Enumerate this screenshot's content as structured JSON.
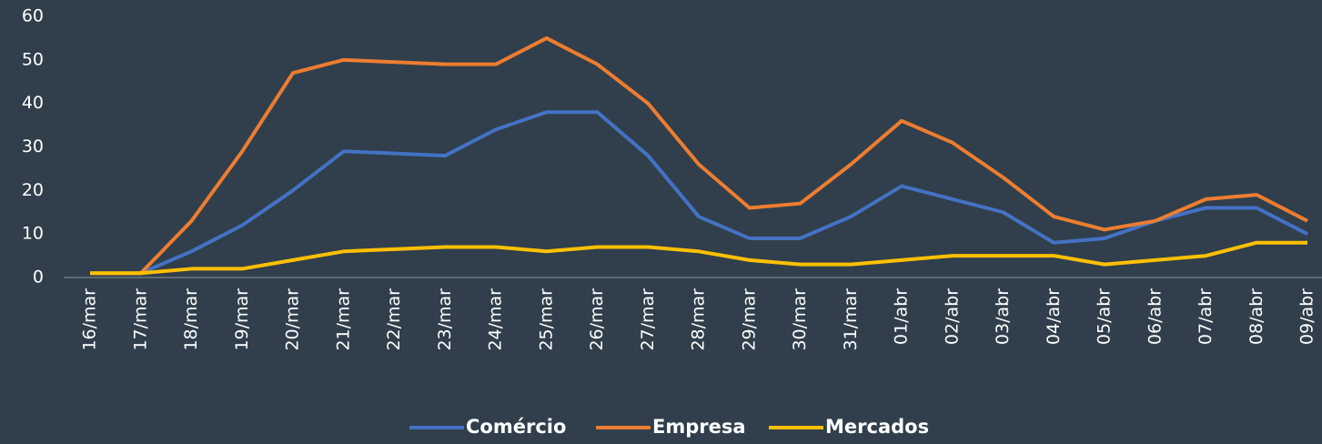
{
  "chart_data": {
    "type": "line",
    "categories": [
      "16/mar",
      "17/mar",
      "18/mar",
      "19/mar",
      "20/mar",
      "21/mar",
      "22/mar",
      "23/mar",
      "24/mar",
      "25/mar",
      "26/mar",
      "27/mar",
      "28/mar",
      "29/mar",
      "30/mar",
      "31/mar",
      "01/abr",
      "02/abr",
      "03/abr",
      "04/abr",
      "05/abr",
      "06/abr",
      "07/abr",
      "08/abr",
      "09/abr"
    ],
    "series": [
      {
        "name": "Comércio",
        "color": "#4472c4",
        "values": [
          1,
          1,
          6,
          12,
          20,
          29,
          28.5,
          28,
          34,
          38,
          38,
          28,
          14,
          9,
          9,
          14,
          21,
          18,
          15,
          8,
          9,
          13,
          16,
          16,
          10
        ]
      },
      {
        "name": "Empresa",
        "color": "#ed7d31",
        "values": [
          1,
          1,
          13,
          29,
          47,
          50,
          49.5,
          49,
          49,
          55,
          49,
          40,
          26,
          16,
          17,
          26,
          36,
          31,
          23,
          14,
          11,
          13,
          18,
          19,
          13
        ]
      },
      {
        "name": "Mercados",
        "color": "#ffc000",
        "values": [
          1,
          1,
          2,
          2,
          4,
          6,
          6.5,
          7,
          7,
          6,
          7,
          7,
          6,
          4,
          3,
          3,
          4,
          5,
          5,
          5,
          3,
          4,
          5,
          8,
          8
        ]
      }
    ],
    "ylim": [
      0,
      60
    ],
    "yticks": [
      0,
      10,
      20,
      30,
      40,
      50,
      60
    ],
    "grid": false,
    "legend": "bottom"
  }
}
